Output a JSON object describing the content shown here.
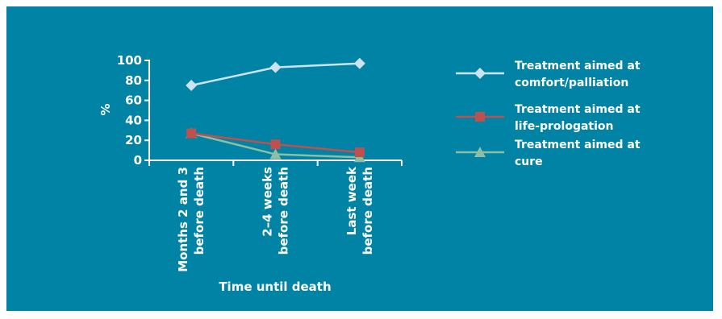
{
  "colors": {
    "background": "#0083a4",
    "axis": "#ffffff",
    "text": "#ffffff"
  },
  "chart_data": {
    "type": "line",
    "categories": [
      [
        "Months 2 and 3",
        "before death"
      ],
      [
        "2–4 weeks",
        "before death"
      ],
      [
        "Last week",
        "before death"
      ]
    ],
    "xlabel": "Time until death",
    "ylabel": "%",
    "ylim": [
      0,
      100
    ],
    "yticks": [
      0,
      20,
      40,
      60,
      80,
      100
    ],
    "grid": false,
    "legend_position": "right",
    "series": [
      {
        "name": [
          "Treatment aimed at",
          "comfort/palliation"
        ],
        "values": [
          75,
          93,
          97
        ],
        "color": "#cde3f1",
        "marker": "diamond"
      },
      {
        "name": [
          "Treatment aimed at",
          "life-prologation"
        ],
        "values": [
          27,
          16,
          8
        ],
        "color": "#c0504d",
        "marker": "square"
      },
      {
        "name": [
          "Treatment aimed at",
          "cure"
        ],
        "values": [
          27,
          6,
          3
        ],
        "color": "#8fbea6",
        "marker": "triangle"
      }
    ]
  }
}
